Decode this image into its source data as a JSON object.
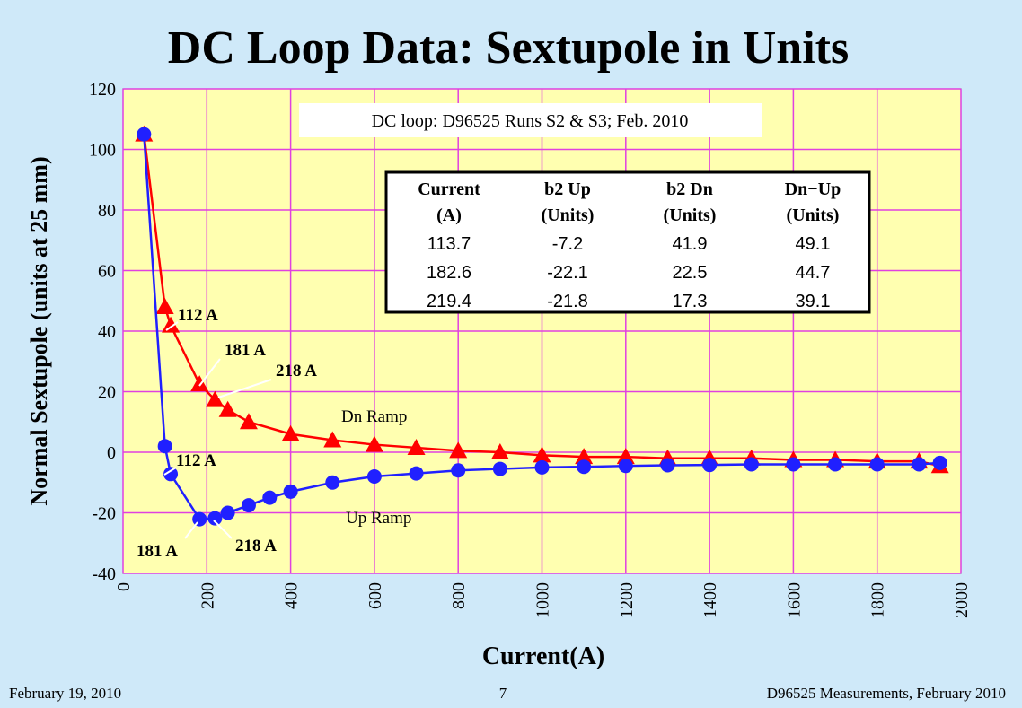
{
  "chart_data": {
    "type": "line",
    "title": "DC Loop Data: Sextupole in Units",
    "x_label": "Current(A)",
    "y_label": "Normal Sextupole (units at 25 mm)",
    "subtitle": "DC loop: D96525 Runs S2 & S3; Feb. 2010",
    "xlim": [
      0,
      2000
    ],
    "xticks": [
      0,
      200,
      400,
      600,
      800,
      1000,
      1200,
      1400,
      1600,
      1800,
      2000
    ],
    "ylim": [
      -40,
      120
    ],
    "yticks": [
      -40,
      -20,
      0,
      20,
      40,
      60,
      80,
      100,
      120
    ],
    "grid": true,
    "series": [
      {
        "name": "Dn Ramp",
        "color": "#ff0000",
        "marker": "triangle",
        "x": [
          50,
          100,
          113.7,
          182.6,
          219.4,
          250,
          300,
          400,
          500,
          600,
          700,
          800,
          900,
          1000,
          1100,
          1200,
          1300,
          1400,
          1500,
          1600,
          1700,
          1800,
          1900,
          1950
        ],
        "values": [
          105,
          48,
          41.9,
          22.5,
          17.3,
          14,
          10,
          6,
          4,
          2.5,
          1.5,
          0.5,
          0,
          -1,
          -1.5,
          -1.5,
          -2,
          -2,
          -2,
          -2.5,
          -2.5,
          -3,
          -3,
          -4.5
        ]
      },
      {
        "name": "Up Ramp",
        "color": "#2020ff",
        "marker": "circle",
        "x": [
          50,
          100,
          113.7,
          182.6,
          219.4,
          250,
          300,
          350,
          400,
          500,
          600,
          700,
          800,
          900,
          1000,
          1100,
          1200,
          1300,
          1400,
          1500,
          1600,
          1700,
          1800,
          1900,
          1950
        ],
        "values": [
          105,
          2,
          -7.2,
          -22.1,
          -21.8,
          -20,
          -17.5,
          -15,
          -13,
          -10,
          -8,
          -7,
          -6,
          -5.5,
          -5,
          -4.8,
          -4.5,
          -4.3,
          -4.2,
          -4,
          -4,
          -4,
          -4,
          -4,
          -3.5
        ]
      }
    ],
    "annotations": [
      "112 A",
      "181 A",
      "218 A",
      "112 A",
      "181 A",
      "218 A"
    ]
  },
  "table": {
    "header": [
      [
        "Current",
        "(A)"
      ],
      [
        "b2 Up",
        "(Units)"
      ],
      [
        "b2 Dn",
        "(Units)"
      ],
      [
        "Dn−Up",
        "(Units)"
      ]
    ],
    "rows": [
      [
        113.7,
        -7.2,
        41.9,
        49.1
      ],
      [
        182.6,
        -22.1,
        22.5,
        44.7
      ],
      [
        219.4,
        -21.8,
        17.3,
        39.1
      ]
    ]
  },
  "footer": {
    "left": "February 19, 2010",
    "center": "7",
    "right": "D96525 Measurements, February 2010"
  }
}
